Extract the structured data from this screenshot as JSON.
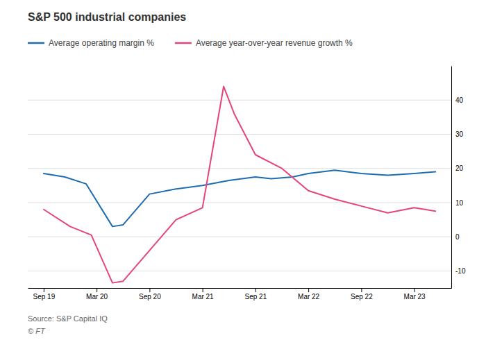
{
  "chart_data": {
    "type": "line",
    "title": "S&P 500 industrial companies",
    "series": [
      {
        "name": "Average operating margin %",
        "color": "#1f6cb0",
        "x": [
          0,
          0.4,
          0.8,
          1.3,
          1.5,
          2.0,
          2.5,
          3.0,
          3.5,
          4.0,
          4.3,
          4.7,
          5.0,
          5.5,
          6.0,
          6.5,
          7.0,
          7.4
        ],
        "values": [
          18.5,
          17.5,
          15.5,
          3.0,
          3.5,
          12.5,
          14.0,
          15.0,
          16.5,
          17.5,
          17.0,
          17.5,
          18.5,
          19.5,
          18.5,
          18.0,
          18.5,
          19.0
        ]
      },
      {
        "name": "Average year-over-year revenue growth %",
        "color": "#e5457a",
        "x": [
          0,
          0.5,
          0.9,
          1.3,
          1.5,
          2.0,
          2.5,
          3.0,
          3.4,
          3.6,
          4.0,
          4.5,
          5.0,
          5.5,
          6.0,
          6.5,
          7.0,
          7.4
        ],
        "values": [
          8.0,
          3.0,
          0.5,
          -13.5,
          -13.0,
          -4.0,
          5.0,
          8.5,
          44.0,
          36.0,
          24.0,
          20.0,
          13.5,
          11.0,
          9.0,
          7.0,
          8.5,
          7.5
        ]
      }
    ],
    "xlim": [
      -0.3,
      7.7
    ],
    "xticks": [
      {
        "value": 0,
        "label": "Sep 19"
      },
      {
        "value": 1,
        "label": "Mar 20"
      },
      {
        "value": 2,
        "label": "Sep 20"
      },
      {
        "value": 3,
        "label": "Mar 21"
      },
      {
        "value": 4,
        "label": "Sep 21"
      },
      {
        "value": 5,
        "label": "Mar 22"
      },
      {
        "value": 6,
        "label": "Sep 22"
      },
      {
        "value": 7,
        "label": "Mar 23"
      }
    ],
    "ylim": [
      -15,
      50
    ],
    "yticks": [
      -10,
      0,
      10,
      20,
      30,
      40
    ],
    "grid": true,
    "legend": "top",
    "annotations": [
      "Source: S&P Capital IQ",
      "© FT"
    ]
  }
}
